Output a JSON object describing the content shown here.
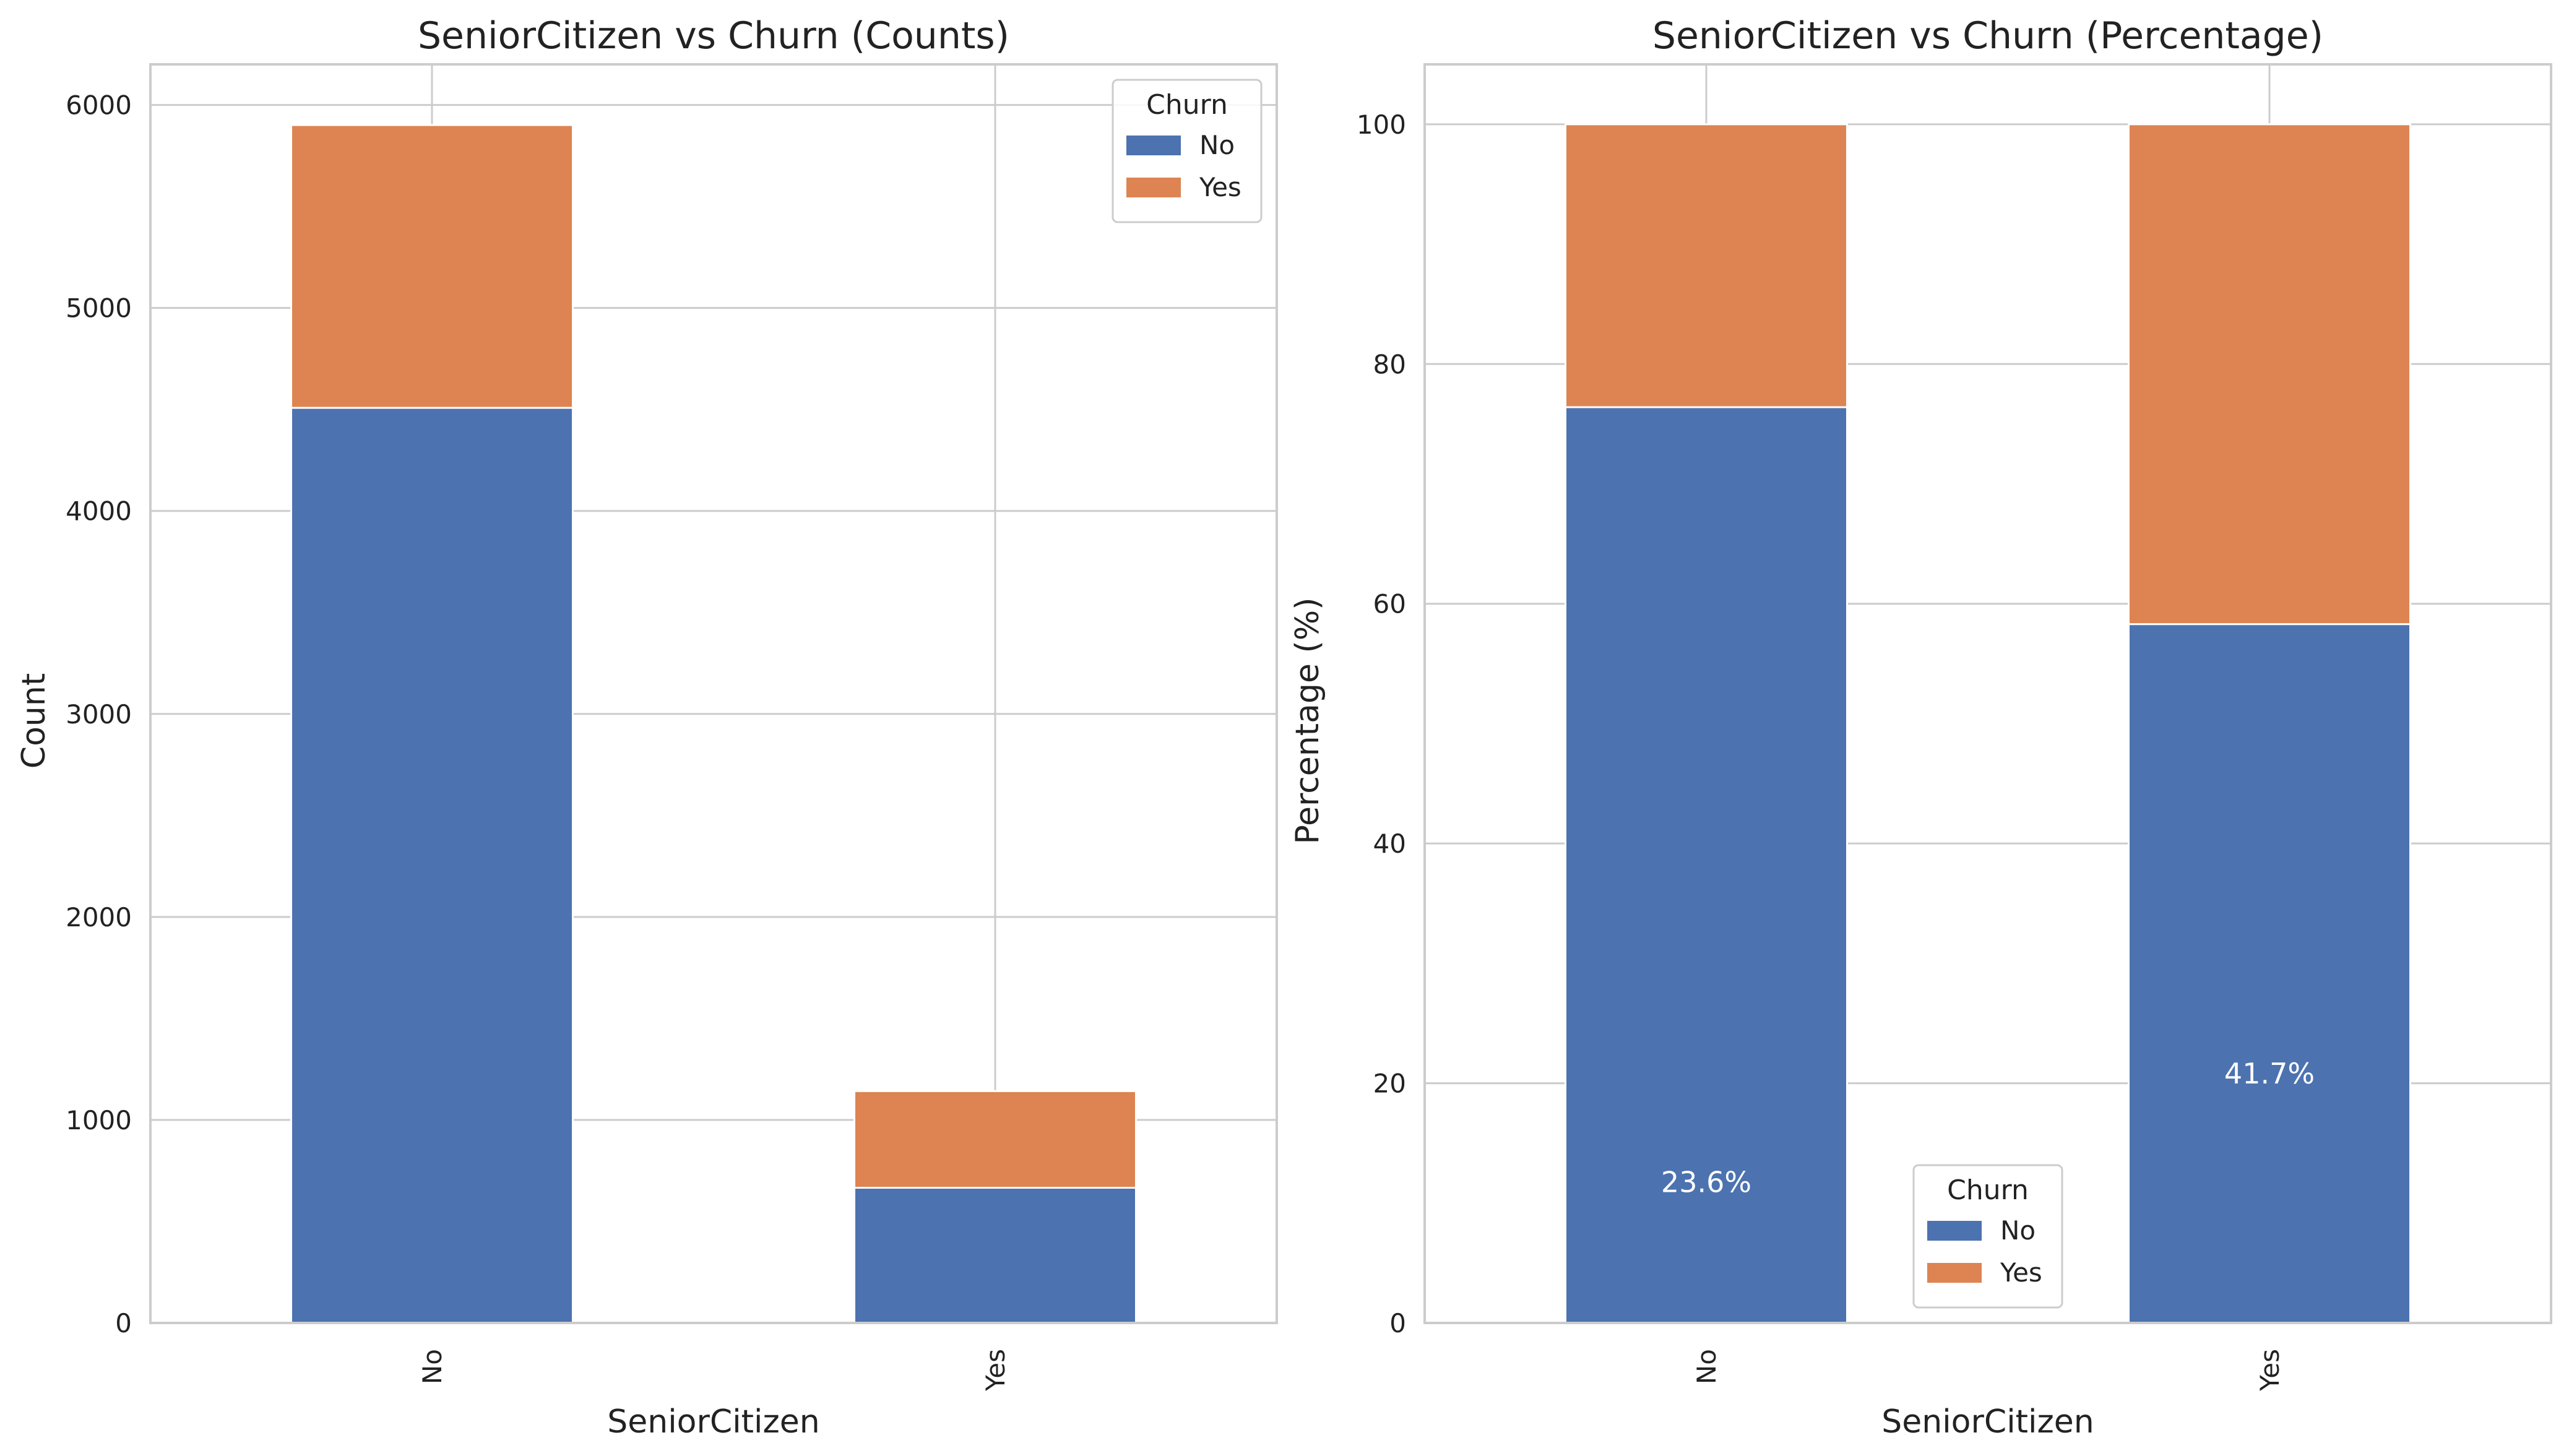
{
  "chart_data": [
    {
      "type": "bar",
      "stacked": true,
      "title": "SeniorCitizen vs Churn (Counts)",
      "xlabel": "SeniorCitizen",
      "ylabel": "Count",
      "categories": [
        "No",
        "Yes"
      ],
      "series": [
        {
          "name": "No",
          "values": [
            4508,
            666
          ]
        },
        {
          "name": "Yes",
          "values": [
            1393,
            476
          ]
        }
      ],
      "ylim": [
        0,
        6200
      ],
      "yticks": [
        "0",
        "1000",
        "2000",
        "3000",
        "4000",
        "5000",
        "6000"
      ],
      "grid": true,
      "legend": {
        "title": "Churn",
        "entries": [
          "No",
          "Yes"
        ],
        "position": "upper right"
      },
      "colors": {
        "No": "#4c72b0",
        "Yes": "#dd8452"
      }
    },
    {
      "type": "bar",
      "stacked": true,
      "title": "SeniorCitizen vs Churn (Percentage)",
      "xlabel": "SeniorCitizen",
      "ylabel": "Percentage (%)",
      "categories": [
        "No",
        "Yes"
      ],
      "series": [
        {
          "name": "No",
          "values": [
            76.4,
            58.3
          ]
        },
        {
          "name": "Yes",
          "values": [
            23.6,
            41.7
          ]
        }
      ],
      "data_labels": [
        "23.6%",
        "41.7%"
      ],
      "ylim": [
        0,
        105
      ],
      "yticks": [
        "0",
        "20",
        "40",
        "60",
        "80",
        "100"
      ],
      "grid": true,
      "legend": {
        "title": "Churn",
        "entries": [
          "No",
          "Yes"
        ],
        "position": "lower center"
      },
      "colors": {
        "No": "#4c72b0",
        "Yes": "#dd8452"
      }
    }
  ]
}
